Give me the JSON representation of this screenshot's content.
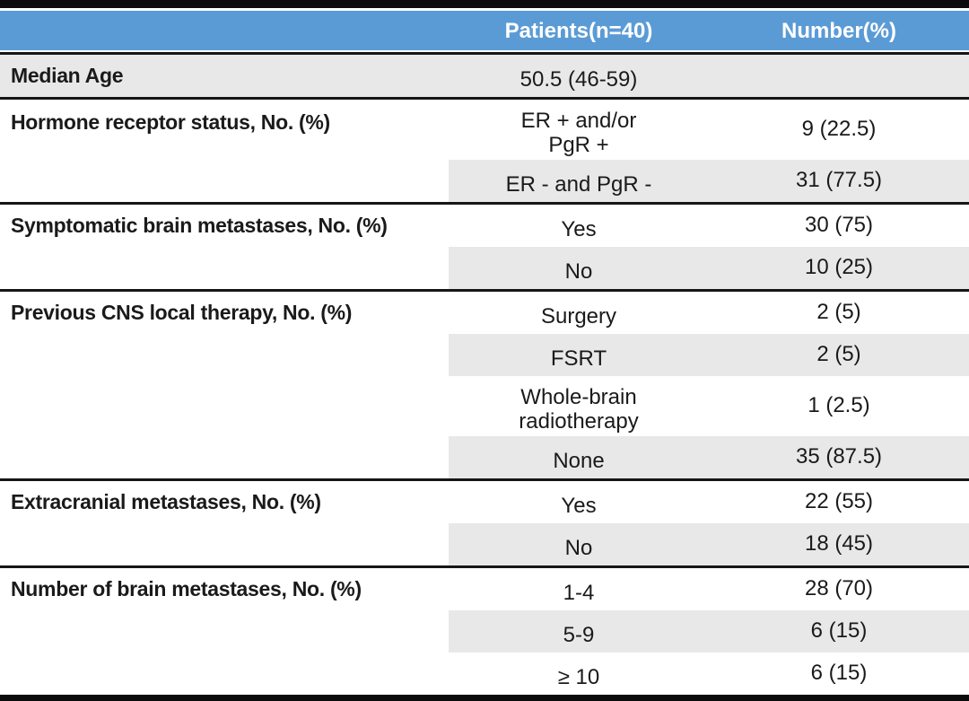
{
  "table": {
    "header": {
      "col1": "",
      "col2": "Patients(n=40)",
      "col3": "Number(%)"
    },
    "colors": {
      "header_bg": "#5B9BD5",
      "header_text": "#FFFFFF",
      "stripe": "#E9E8E8",
      "line": "#161616",
      "bar": "#0B0B0B",
      "text": "#1A1A1A"
    },
    "sections": [
      {
        "label": "Median Age",
        "rows": [
          {
            "value": "50.5 (46-59)",
            "number": "",
            "shaded": true
          }
        ]
      },
      {
        "label": "Hormone receptor status, No. (%)",
        "rows": [
          {
            "value": "ER + and/or\nPgR +",
            "number": "9 (22.5)",
            "shaded": false
          },
          {
            "value": "ER - and PgR -",
            "number": "31 (77.5)",
            "shaded": true
          }
        ]
      },
      {
        "label": "Symptomatic brain metastases, No. (%)",
        "rows": [
          {
            "value": "Yes",
            "number": "30 (75)",
            "shaded": false
          },
          {
            "value": "No",
            "number": "10 (25)",
            "shaded": true
          }
        ]
      },
      {
        "label": "Previous CNS local therapy, No. (%)",
        "rows": [
          {
            "value": "Surgery",
            "number": "2 (5)",
            "shaded": false
          },
          {
            "value": "FSRT",
            "number": "2 (5)",
            "shaded": true
          },
          {
            "value": "Whole-brain\nradiotherapy",
            "number": "1 (2.5)",
            "shaded": false
          },
          {
            "value": "None",
            "number": "35 (87.5)",
            "shaded": true
          }
        ]
      },
      {
        "label": "Extracranial metastases, No. (%)",
        "rows": [
          {
            "value": "Yes",
            "number": "22 (55)",
            "shaded": false
          },
          {
            "value": "No",
            "number": "18 (45)",
            "shaded": true
          }
        ]
      },
      {
        "label": "Number of brain metastases, No. (%)",
        "rows": [
          {
            "value": "1-4",
            "number": "28 (70)",
            "shaded": false
          },
          {
            "value": "5-9",
            "number": "6 (15)",
            "shaded": true
          },
          {
            "value": "≥ 10",
            "number": "6 (15)",
            "shaded": false
          }
        ]
      }
    ]
  }
}
